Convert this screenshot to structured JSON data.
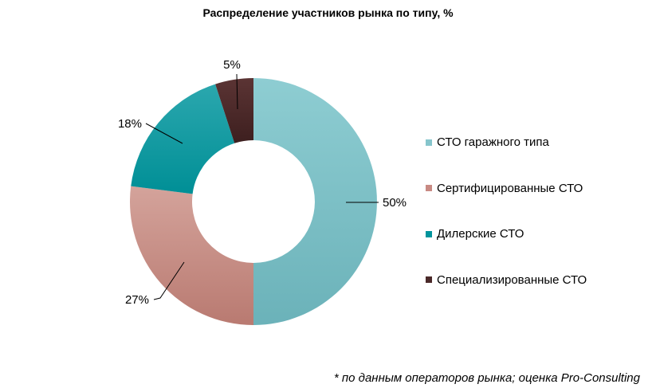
{
  "chart_data": {
    "type": "pie",
    "donut": true,
    "title": "Распределение участников рынка по типу, %",
    "categories": [
      "СТО гаражного типа",
      "Сертифицированные СТО",
      "Дилерские СТО",
      "Специализированные СТО"
    ],
    "values": [
      50,
      27,
      18,
      5
    ],
    "data_labels": [
      "50%",
      "27%",
      "18%",
      "5%"
    ],
    "colors": [
      "#86c5cc",
      "#c88a83",
      "#00949c",
      "#4a2929"
    ],
    "legend_position": "right"
  },
  "footnote": "* по данным операторов рынка; оценка Pro-Consulting"
}
